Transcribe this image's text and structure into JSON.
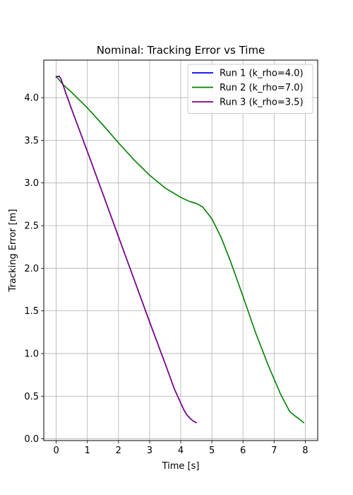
{
  "chart_data": {
    "type": "line",
    "title": "Nominal: Tracking Error vs Time",
    "xlabel": "Time [s]",
    "ylabel": "Tracking Error [m]",
    "xlim": [
      -0.4,
      8.4
    ],
    "ylim": [
      -0.02,
      4.44
    ],
    "xticks": [
      0,
      1,
      2,
      3,
      4,
      5,
      6,
      7,
      8
    ],
    "xtick_labels": [
      "0",
      "1",
      "2",
      "3",
      "4",
      "5",
      "6",
      "7",
      "8"
    ],
    "yticks": [
      0.0,
      0.5,
      1.0,
      1.5,
      2.0,
      2.5,
      3.0,
      3.5,
      4.0
    ],
    "ytick_labels": [
      "0.0",
      "0.5",
      "1.0",
      "1.5",
      "2.0",
      "2.5",
      "3.0",
      "3.5",
      "4.0"
    ],
    "grid": true,
    "legend_position": "top-right",
    "series": [
      {
        "name": "Run 1 (k_rho=4.0)",
        "color": "#0000ff",
        "x": [
          0.0,
          0.05,
          0.1,
          0.15,
          0.2,
          0.3,
          0.5,
          1.0,
          1.5,
          2.0,
          2.5,
          3.0,
          3.5,
          3.8,
          4.0,
          4.1,
          4.2,
          4.3,
          4.4,
          4.5
        ],
        "y": [
          4.24,
          4.25,
          4.25,
          4.22,
          4.17,
          4.06,
          3.86,
          3.37,
          2.87,
          2.37,
          1.87,
          1.37,
          0.88,
          0.58,
          0.42,
          0.34,
          0.28,
          0.24,
          0.21,
          0.19
        ]
      },
      {
        "name": "Run 2 (k_rho=7.0)",
        "color": "#008000",
        "x": [
          0.0,
          0.2,
          0.5,
          1.0,
          1.5,
          2.0,
          2.5,
          3.0,
          3.5,
          4.0,
          4.3,
          4.5,
          4.7,
          5.0,
          5.3,
          5.6,
          6.0,
          6.4,
          6.8,
          7.2,
          7.5,
          7.7,
          7.85,
          7.95
        ],
        "y": [
          4.25,
          4.16,
          4.06,
          3.88,
          3.68,
          3.47,
          3.27,
          3.09,
          2.94,
          2.83,
          2.78,
          2.76,
          2.72,
          2.58,
          2.36,
          2.08,
          1.67,
          1.25,
          0.87,
          0.53,
          0.32,
          0.26,
          0.22,
          0.19
        ]
      },
      {
        "name": "Run 3 (k_rho=3.5)",
        "color": "#800080",
        "x": [
          0.0,
          0.05,
          0.1,
          0.15,
          0.2,
          0.3,
          0.5,
          1.0,
          1.5,
          2.0,
          2.5,
          3.0,
          3.5,
          3.8,
          4.0,
          4.1,
          4.2,
          4.3,
          4.4,
          4.5
        ],
        "y": [
          4.24,
          4.25,
          4.25,
          4.22,
          4.17,
          4.06,
          3.86,
          3.37,
          2.87,
          2.37,
          1.87,
          1.37,
          0.88,
          0.58,
          0.42,
          0.34,
          0.28,
          0.24,
          0.21,
          0.19
        ]
      }
    ]
  }
}
